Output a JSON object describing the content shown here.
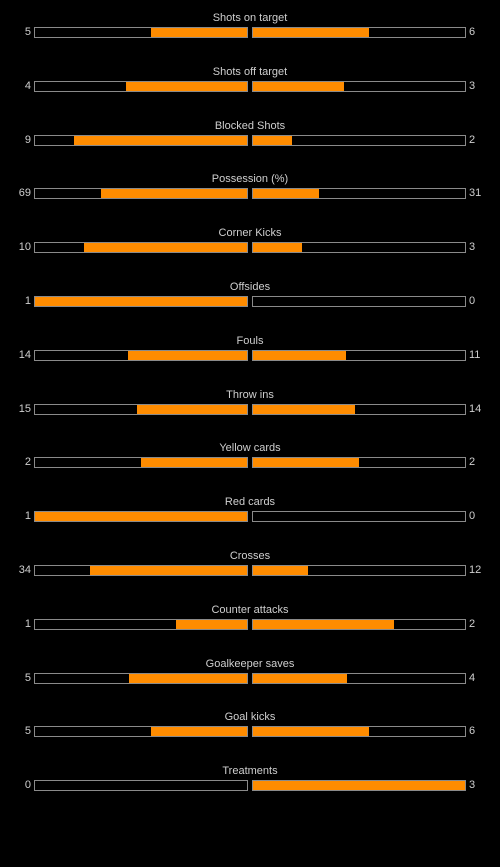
{
  "colors": {
    "background": "#000000",
    "bar_fill": "#ff8c00",
    "bar_border": "#8a8a8a",
    "text": "#cfcfcf"
  },
  "stats": [
    {
      "label": "Shots on target",
      "home": "5",
      "away": "6",
      "home_share": 0.455,
      "away_share": 0.545
    },
    {
      "label": "Shots off target",
      "home": "4",
      "away": "3",
      "home_share": 0.571,
      "away_share": 0.429
    },
    {
      "label": "Blocked Shots",
      "home": "9",
      "away": "2",
      "home_share": 0.818,
      "away_share": 0.182
    },
    {
      "label": "Possession (%)",
      "home": "69",
      "away": "31",
      "home_share": 0.69,
      "away_share": 0.31
    },
    {
      "label": "Corner Kicks",
      "home": "10",
      "away": "3",
      "home_share": 0.769,
      "away_share": 0.231
    },
    {
      "label": "Offsides",
      "home": "1",
      "away": "0",
      "home_share": 1.0,
      "away_share": 0.0
    },
    {
      "label": "Fouls",
      "home": "14",
      "away": "11",
      "home_share": 0.56,
      "away_share": 0.44
    },
    {
      "label": "Throw ins",
      "home": "15",
      "away": "14",
      "home_share": 0.517,
      "away_share": 0.483
    },
    {
      "label": "Yellow cards",
      "home": "2",
      "away": "2",
      "home_share": 0.5,
      "away_share": 0.5
    },
    {
      "label": "Red cards",
      "home": "1",
      "away": "0",
      "home_share": 1.0,
      "away_share": 0.0
    },
    {
      "label": "Crosses",
      "home": "34",
      "away": "12",
      "home_share": 0.739,
      "away_share": 0.261
    },
    {
      "label": "Counter attacks",
      "home": "1",
      "away": "2",
      "home_share": 0.333,
      "away_share": 0.667
    },
    {
      "label": "Goalkeeper saves",
      "home": "5",
      "away": "4",
      "home_share": 0.556,
      "away_share": 0.444
    },
    {
      "label": "Goal kicks",
      "home": "5",
      "away": "6",
      "home_share": 0.455,
      "away_share": 0.545
    },
    {
      "label": "Treatments",
      "home": "0",
      "away": "3",
      "home_share": 0.0,
      "away_share": 1.0
    }
  ]
}
